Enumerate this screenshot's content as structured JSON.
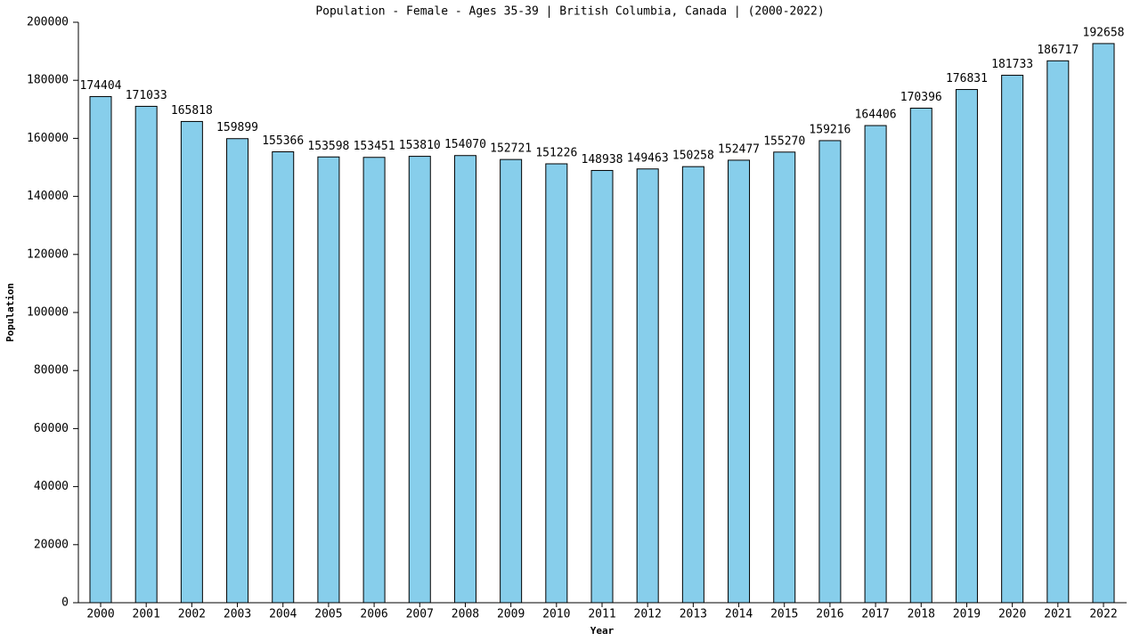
{
  "chart_data": {
    "type": "bar",
    "title": "Population - Female - Ages 35-39 | British Columbia, Canada |  (2000-2022)",
    "x_label": "Year",
    "y_label": "Population",
    "categories": [
      "2000",
      "2001",
      "2002",
      "2003",
      "2004",
      "2005",
      "2006",
      "2007",
      "2008",
      "2009",
      "2010",
      "2011",
      "2012",
      "2013",
      "2014",
      "2015",
      "2016",
      "2017",
      "2018",
      "2019",
      "2020",
      "2021",
      "2022"
    ],
    "values": [
      174404,
      171033,
      165818,
      159899,
      155366,
      153598,
      153451,
      153810,
      154070,
      152721,
      151226,
      148938,
      149463,
      150258,
      152477,
      155270,
      159216,
      164406,
      170396,
      176831,
      181733,
      186717,
      192658
    ],
    "color": "#87ceeb",
    "ylim": [
      0,
      200000
    ],
    "yticks": [
      0,
      20000,
      40000,
      60000,
      80000,
      100000,
      120000,
      140000,
      160000,
      180000,
      200000
    ],
    "grid": false
  }
}
